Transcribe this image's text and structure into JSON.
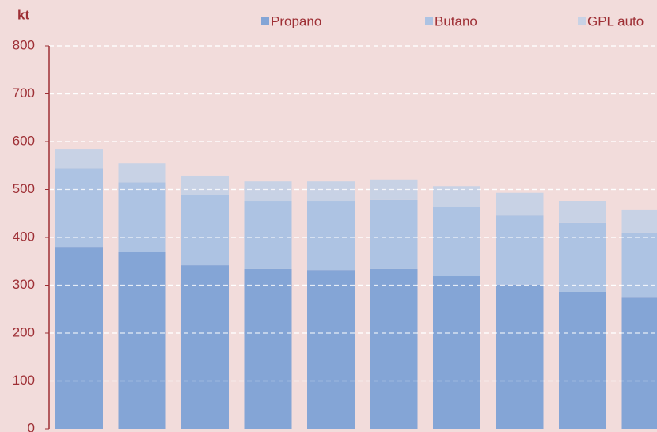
{
  "chart_data": {
    "type": "stacked-bar",
    "y_label": "kt",
    "categories": [
      null,
      null,
      null,
      null,
      null,
      null,
      null,
      null,
      null,
      null
    ],
    "series": [
      {
        "name": "Propano",
        "color": "#84a5d6",
        "values": [
          380,
          370,
          342,
          334,
          332,
          334,
          319,
          301,
          286,
          274
        ]
      },
      {
        "name": "Butano",
        "color": "#adc3e3",
        "values": [
          165,
          145,
          147,
          142,
          144,
          144,
          144,
          145,
          144,
          136
        ]
      },
      {
        "name": "GPL auto",
        "color": "#c8d2e5",
        "values": [
          40,
          40,
          40,
          41,
          41,
          43,
          44,
          47,
          46,
          48
        ]
      }
    ],
    "ylim": [
      0,
      800
    ],
    "yticks": [
      0,
      100,
      200,
      300,
      400,
      500,
      600,
      700,
      800
    ],
    "grid": true,
    "legend": "top"
  }
}
